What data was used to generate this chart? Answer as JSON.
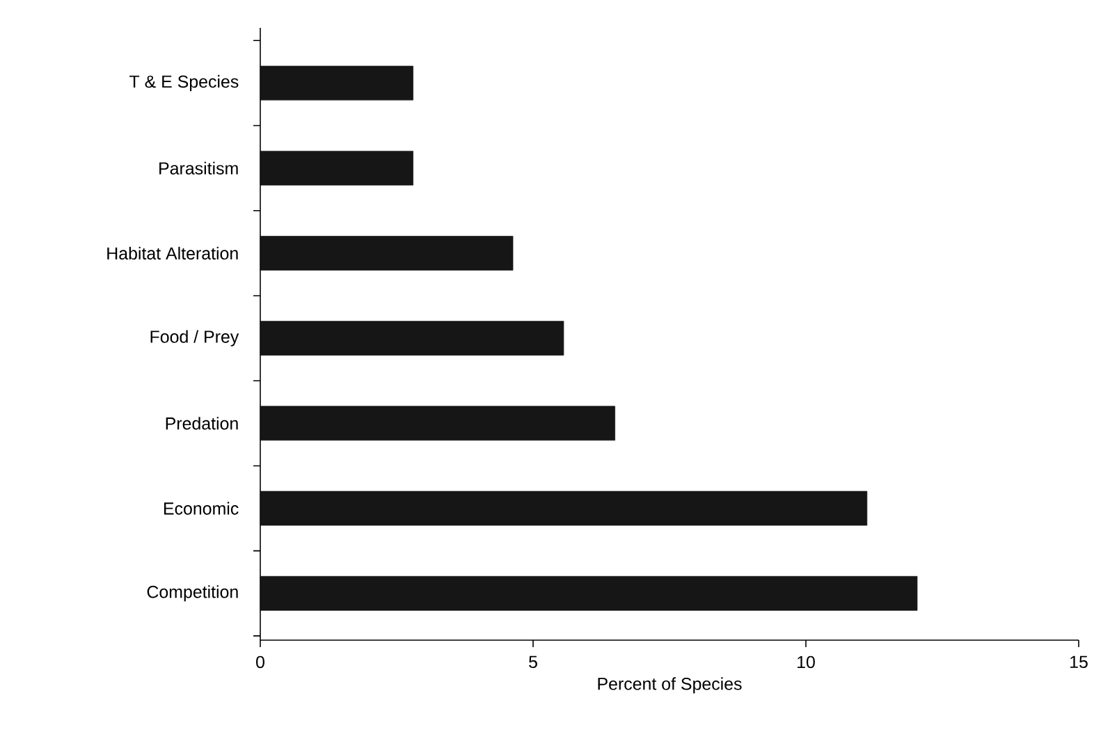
{
  "chart_data": {
    "type": "bar",
    "orientation": "horizontal",
    "xlabel": "Percent of Species",
    "categories": [
      "T & E Species",
      "Parasitism",
      "Habitat Alteration",
      "Food / Prey",
      "Predation",
      "Economic",
      "Competition"
    ],
    "values": [
      2.8,
      2.8,
      4.63,
      5.56,
      6.5,
      11.12,
      12.04
    ],
    "color": "#161616",
    "xlim": [
      0,
      15
    ],
    "xticks": [
      0,
      5,
      10,
      15
    ]
  }
}
